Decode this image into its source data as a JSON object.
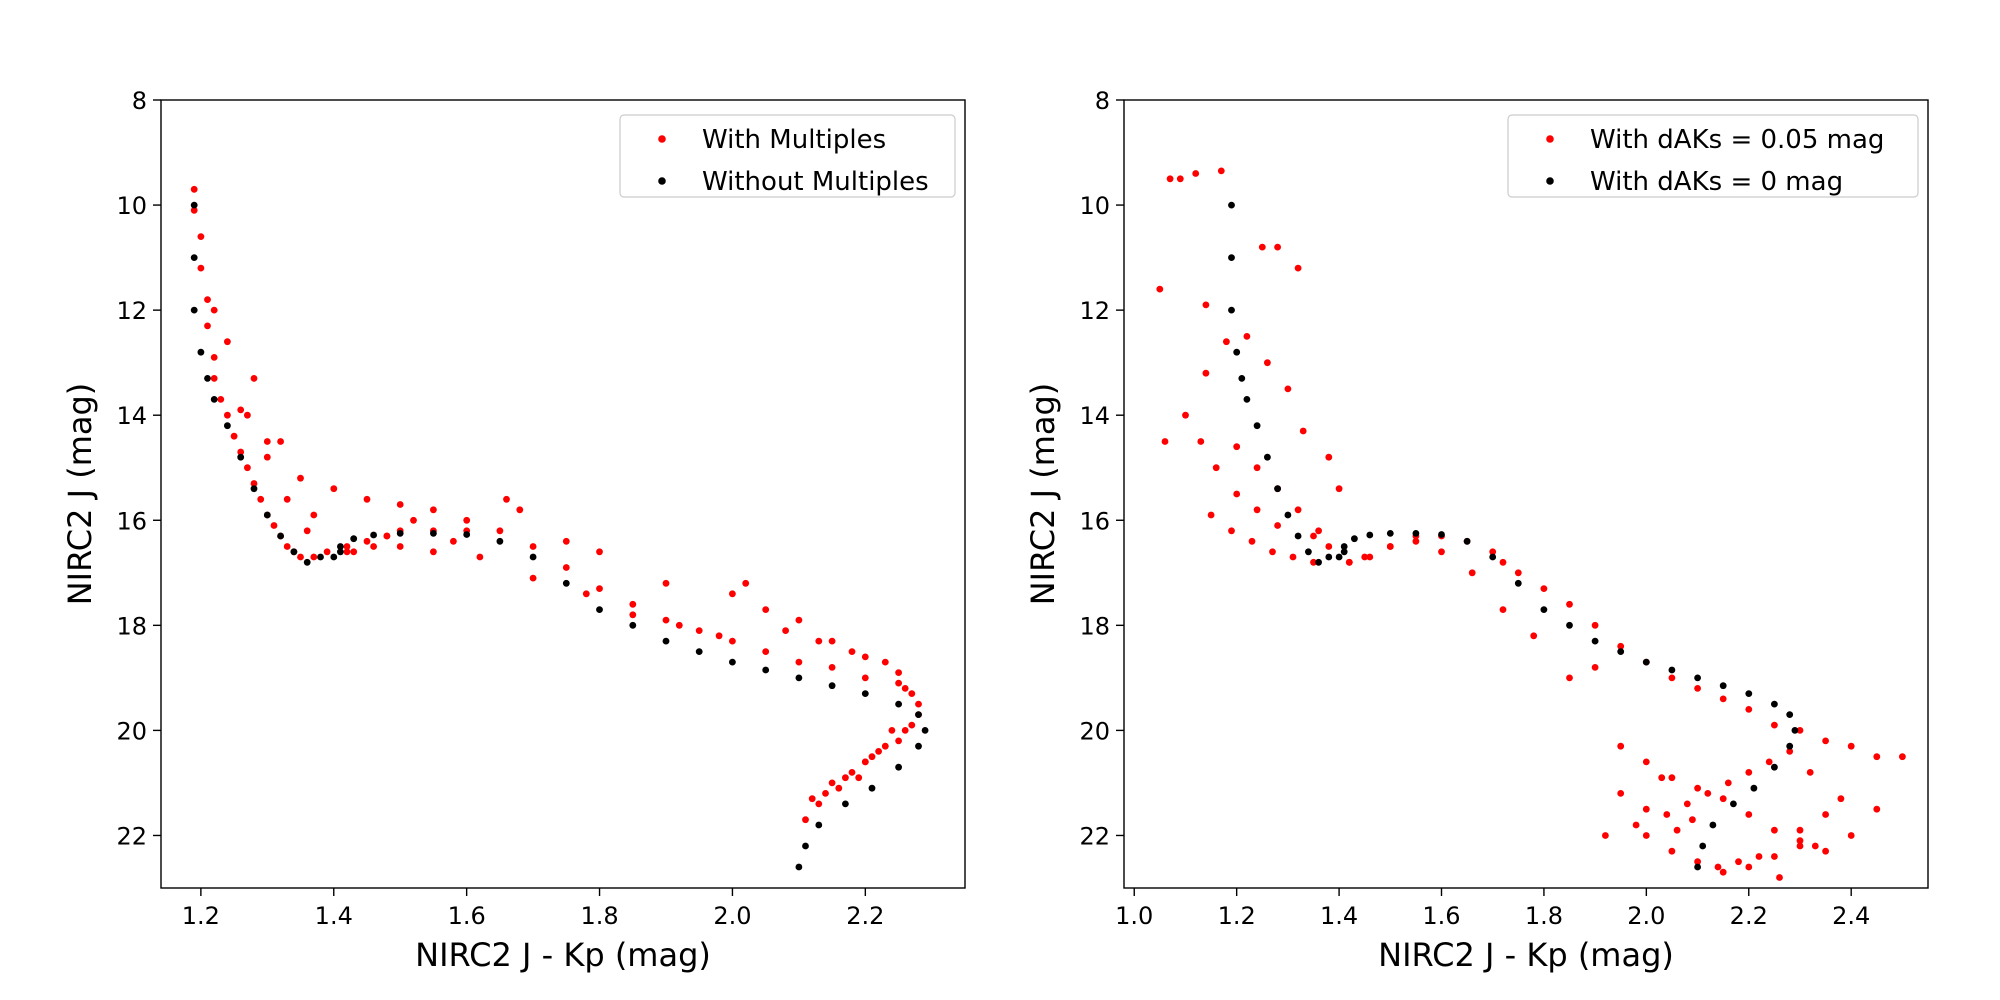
{
  "chart_data": [
    {
      "type": "scatter",
      "title": "",
      "xlabel": "NIRC2 J - Kp (mag)",
      "ylabel": "NIRC2 J (mag)",
      "xlim": [
        1.14,
        2.35
      ],
      "ylim": [
        23,
        8
      ],
      "y_inverted": true,
      "xticks": [
        "1.2",
        "1.4",
        "1.6",
        "1.8",
        "2.0",
        "2.2"
      ],
      "yticks": [
        "8",
        "10",
        "12",
        "14",
        "16",
        "18",
        "20",
        "22"
      ],
      "grid": false,
      "legend_position": "top-right",
      "series": [
        {
          "name": "With Multiples",
          "color": "#ff0000",
          "x": [
            1.19,
            1.19,
            1.2,
            1.2,
            1.21,
            1.21,
            1.22,
            1.22,
            1.23,
            1.24,
            1.25,
            1.26,
            1.27,
            1.28,
            1.29,
            1.3,
            1.31,
            1.32,
            1.33,
            1.34,
            1.35,
            1.37,
            1.39,
            1.42,
            1.45,
            1.48,
            1.5,
            1.55,
            1.6,
            1.65,
            1.7,
            1.75,
            1.8,
            1.85,
            1.9,
            1.95,
            2.0,
            2.05,
            2.1,
            2.15,
            2.2,
            2.25,
            2.27,
            1.28,
            1.3,
            1.35,
            1.4,
            1.45,
            1.5,
            1.55,
            1.6,
            1.66,
            1.68,
            1.75,
            1.8,
            1.9,
            2.0,
            2.05,
            2.1,
            2.15,
            2.2,
            2.25,
            2.28,
            2.27,
            2.25,
            2.22,
            2.2,
            2.18,
            2.15,
            2.12,
            2.11,
            2.14,
            2.17,
            2.2,
            2.23,
            2.26,
            2.28,
            1.42,
            1.46,
            1.5,
            1.55,
            1.22,
            1.24,
            1.26,
            1.3,
            1.33,
            1.36,
            1.27,
            1.32,
            1.37,
            1.43,
            1.48,
            1.52,
            1.58,
            1.62,
            1.7,
            1.78,
            1.85,
            1.92,
            1.98,
            2.02,
            2.08,
            2.13,
            2.18,
            2.23,
            2.26,
            2.24,
            2.21,
            2.19,
            2.16,
            2.13
          ],
          "y": [
            9.7,
            10.1,
            10.6,
            11.2,
            11.8,
            12.3,
            12.9,
            13.3,
            13.7,
            14.0,
            14.4,
            14.7,
            15.0,
            15.3,
            15.6,
            15.9,
            16.1,
            16.3,
            16.5,
            16.6,
            16.7,
            16.7,
            16.6,
            16.5,
            16.4,
            16.3,
            16.2,
            16.2,
            16.2,
            16.2,
            16.5,
            16.9,
            17.3,
            17.6,
            17.9,
            18.1,
            18.3,
            18.5,
            18.7,
            18.8,
            19.0,
            19.1,
            19.3,
            13.3,
            14.5,
            15.2,
            15.4,
            15.6,
            15.7,
            15.8,
            16.0,
            15.6,
            15.8,
            16.4,
            16.6,
            17.2,
            17.4,
            17.7,
            17.9,
            18.3,
            18.6,
            18.9,
            19.5,
            19.9,
            20.2,
            20.4,
            20.6,
            20.8,
            21.0,
            21.3,
            21.7,
            21.2,
            20.9,
            20.6,
            20.3,
            20.0,
            19.7,
            16.6,
            16.5,
            16.5,
            16.6,
            12.0,
            12.6,
            13.9,
            14.8,
            15.6,
            16.2,
            14.0,
            14.5,
            15.9,
            16.6,
            16.3,
            16.0,
            16.4,
            16.7,
            17.1,
            17.4,
            17.8,
            18.0,
            18.2,
            17.2,
            18.1,
            18.3,
            18.5,
            18.7,
            19.2,
            20.0,
            20.5,
            20.9,
            21.1,
            21.4
          ]
        },
        {
          "name": "Without Multiples",
          "color": "#000000",
          "x": [
            1.19,
            1.19,
            1.19,
            1.2,
            1.21,
            1.22,
            1.24,
            1.26,
            1.28,
            1.3,
            1.32,
            1.34,
            1.36,
            1.38,
            1.4,
            1.41,
            1.41,
            1.43,
            1.46,
            1.5,
            1.55,
            1.6,
            1.65,
            1.7,
            1.75,
            1.8,
            1.85,
            1.9,
            1.95,
            2.0,
            2.05,
            2.1,
            2.15,
            2.2,
            2.25,
            2.28,
            2.29,
            2.28,
            2.25,
            2.21,
            2.17,
            2.13,
            2.11,
            2.1
          ],
          "y": [
            10.0,
            11.0,
            12.0,
            12.8,
            13.3,
            13.7,
            14.2,
            14.8,
            15.4,
            15.9,
            16.3,
            16.6,
            16.8,
            16.7,
            16.7,
            16.6,
            16.5,
            16.35,
            16.28,
            16.25,
            16.25,
            16.27,
            16.4,
            16.7,
            17.2,
            17.7,
            18.0,
            18.3,
            18.5,
            18.7,
            18.85,
            19.0,
            19.15,
            19.3,
            19.5,
            19.7,
            20.0,
            20.3,
            20.7,
            21.1,
            21.4,
            21.8,
            22.2,
            22.6
          ]
        }
      ]
    },
    {
      "type": "scatter",
      "title": "",
      "xlabel": "NIRC2 J - Kp (mag)",
      "ylabel": "NIRC2 J (mag)",
      "xlim": [
        0.98,
        2.55
      ],
      "ylim": [
        23,
        8
      ],
      "y_inverted": true,
      "xticks": [
        "1.0",
        "1.2",
        "1.4",
        "1.6",
        "1.8",
        "2.0",
        "2.2",
        "2.4"
      ],
      "yticks": [
        "8",
        "10",
        "12",
        "14",
        "16",
        "18",
        "20",
        "22"
      ],
      "grid": false,
      "legend_position": "top-right",
      "series": [
        {
          "name": "With dAKs = 0.05 mag",
          "color": "#ff0000",
          "x": [
            1.07,
            1.09,
            1.12,
            1.17,
            1.05,
            1.06,
            1.14,
            1.25,
            1.28,
            1.32,
            1.14,
            1.18,
            1.22,
            1.26,
            1.3,
            1.1,
            1.13,
            1.16,
            1.2,
            1.24,
            1.28,
            1.33,
            1.38,
            1.15,
            1.19,
            1.23,
            1.27,
            1.31,
            1.35,
            1.4,
            1.2,
            1.24,
            1.28,
            1.32,
            1.36,
            1.42,
            1.46,
            1.5,
            1.55,
            1.6,
            1.65,
            1.7,
            1.72,
            1.75,
            1.8,
            1.85,
            1.9,
            1.95,
            2.0,
            2.05,
            2.1,
            2.15,
            2.2,
            2.25,
            2.3,
            2.35,
            2.4,
            2.45,
            2.5,
            1.95,
            2.0,
            2.05,
            2.1,
            2.15,
            2.2,
            2.25,
            2.3,
            2.35,
            2.4,
            2.45,
            2.0,
            2.05,
            2.1,
            2.15,
            2.2,
            2.25,
            2.3,
            2.35,
            1.92,
            1.98,
            2.04,
            2.08,
            2.12,
            2.16,
            2.2,
            2.24,
            2.28,
            2.32,
            1.95,
            2.0,
            2.06,
            2.14,
            2.22,
            2.3,
            2.38,
            2.03,
            2.09,
            2.18,
            2.26,
            2.33,
            1.85,
            1.9,
            1.78,
            1.72,
            1.66,
            1.6,
            1.55,
            1.5,
            1.45,
            1.42,
            1.38,
            1.35
          ],
          "y": [
            9.5,
            9.5,
            9.4,
            9.35,
            11.6,
            14.5,
            11.9,
            10.8,
            10.8,
            11.2,
            13.2,
            12.6,
            12.5,
            13.0,
            13.5,
            14.0,
            14.5,
            15.0,
            15.5,
            15.8,
            16.1,
            14.3,
            14.8,
            15.9,
            16.2,
            16.4,
            16.6,
            16.7,
            16.8,
            15.4,
            14.6,
            15.0,
            15.4,
            15.8,
            16.2,
            16.8,
            16.7,
            16.5,
            16.3,
            16.3,
            16.4,
            16.6,
            16.8,
            17.0,
            17.3,
            17.6,
            18.0,
            18.4,
            18.7,
            19.0,
            19.2,
            19.4,
            19.6,
            19.9,
            20.0,
            20.2,
            20.3,
            20.5,
            20.5,
            20.3,
            20.6,
            20.9,
            21.1,
            21.3,
            21.6,
            21.9,
            22.1,
            22.3,
            22.0,
            21.5,
            22.0,
            22.3,
            22.5,
            22.7,
            22.6,
            22.4,
            22.2,
            21.6,
            22.0,
            21.8,
            21.6,
            21.4,
            21.2,
            21.0,
            20.8,
            20.6,
            20.4,
            20.8,
            21.2,
            21.5,
            21.9,
            22.6,
            22.4,
            21.9,
            21.3,
            20.9,
            21.7,
            22.5,
            22.8,
            22.2,
            19.0,
            18.8,
            18.2,
            17.7,
            17.0,
            16.6,
            16.4,
            16.5,
            16.7,
            16.8,
            16.5,
            16.3
          ]
        },
        {
          "name": "With dAKs = 0 mag",
          "color": "#000000",
          "x": [
            1.19,
            1.19,
            1.19,
            1.2,
            1.21,
            1.22,
            1.24,
            1.26,
            1.28,
            1.3,
            1.32,
            1.34,
            1.36,
            1.38,
            1.4,
            1.41,
            1.41,
            1.43,
            1.46,
            1.5,
            1.55,
            1.6,
            1.65,
            1.7,
            1.75,
            1.8,
            1.85,
            1.9,
            1.95,
            2.0,
            2.05,
            2.1,
            2.15,
            2.2,
            2.25,
            2.28,
            2.29,
            2.28,
            2.25,
            2.21,
            2.17,
            2.13,
            2.11,
            2.1
          ],
          "y": [
            10.0,
            11.0,
            12.0,
            12.8,
            13.3,
            13.7,
            14.2,
            14.8,
            15.4,
            15.9,
            16.3,
            16.6,
            16.8,
            16.7,
            16.7,
            16.6,
            16.5,
            16.35,
            16.28,
            16.25,
            16.25,
            16.27,
            16.4,
            16.7,
            17.2,
            17.7,
            18.0,
            18.3,
            18.5,
            18.7,
            18.85,
            19.0,
            19.15,
            19.3,
            19.5,
            19.7,
            20.0,
            20.3,
            20.7,
            21.1,
            21.4,
            21.8,
            22.2,
            22.6
          ]
        }
      ]
    }
  ]
}
